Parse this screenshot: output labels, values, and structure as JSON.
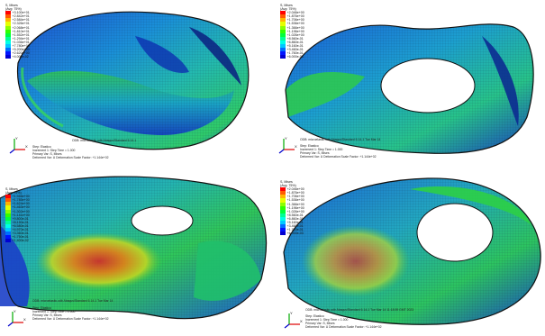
{
  "panels": [
    {
      "legend": {
        "title": "S, Mises",
        "avg": "(Avg: 75%)",
        "values": [
          "+3.100e+01",
          "+2.842e+01",
          "+2.584e+01",
          "+2.326e+01",
          "+2.068e+01",
          "+1.810e+01",
          "+1.552e+01",
          "+1.294e+01",
          "+1.036e+01",
          "+7.780e+00",
          "+5.200e+00",
          "+2.620e+00",
          "+4.000e-02"
        ]
      },
      "odb": "ODB: microelastic.odb    Abaqus/Standard 6.14-1",
      "info": [
        "Step: Elastico",
        "Increment     1: Step Time =    1.000",
        "Primary Var: S, Mises",
        "Deformed Var: U   Deformation Scale Factor: +1.144e+02"
      ]
    },
    {
      "legend": {
        "title": "S, Mises",
        "avg": "(Avg: 75%)",
        "values": [
          "+2.046e+00",
          "+1.876e+00",
          "+1.706e+00",
          "+1.536e+00",
          "+1.366e+00",
          "+1.196e+00",
          "+1.026e+00",
          "+8.560e-01",
          "+6.860e-01",
          "+5.160e-01",
          "+3.460e-01",
          "+1.760e-01",
          "+6.000e-03"
        ]
      },
      "odb": "ODB: microelastic.odb    Abaqus/Standard 6.14-1    Tue Mar 14",
      "info": [
        "Step: Elastico",
        "Increment     1: Step Time =    1.000",
        "Primary Var: S, Mises",
        "Deformed Var: U   Deformation Scale Factor: +1.144e+02"
      ]
    },
    {
      "legend": {
        "title": "S, Mises",
        "avg": "(Avg: 75%)",
        "values": [
          "+1.946e+00",
          "+1.785e+00",
          "+1.624e+00",
          "+1.463e+00",
          "+1.302e+00",
          "+1.141e+00",
          "+9.800e-01",
          "+8.190e-01",
          "+6.580e-01",
          "+4.970e-01",
          "+3.360e-01",
          "+1.750e-01",
          "+1.400e-02"
        ]
      },
      "odb": "ODB: microelastic.odb    Abaqus/Standard 6.14-1    Tue Mar 14",
      "info": [
        "Step: Elastico",
        "Increment     1: Step Time =    1.000",
        "Primary Var: S, Mises",
        "Deformed Var: U   Deformation Scale Factor: +1.144e+02"
      ]
    },
    {
      "legend": {
        "title": "S, Mises",
        "avg": "(Avg: 75%)",
        "values": [
          "+2.046e+00",
          "+1.876e+00",
          "+1.706e+00",
          "+1.536e+00",
          "+1.366e+00",
          "+1.196e+00",
          "+1.026e+00",
          "+8.560e-01",
          "+6.860e-01",
          "+5.160e-01",
          "+3.460e-01",
          "+1.760e-01",
          "+6.000e-03"
        ]
      },
      "odb": "ODB: microelastic.odb    Abaqus/Standard 6.14-1    Tue Mar 14 11:18:59 GMT 2023",
      "info": [
        "Step: Elastico",
        "Increment     1: Step Time =    1.000",
        "Primary Var: S, Mises",
        "Deformed Var: U   Deformation Scale Factor: +1.144e+02"
      ]
    }
  ],
  "legend_colors": [
    "#ff0000",
    "#ff5a00",
    "#ffb400",
    "#e6ff00",
    "#8cff00",
    "#32ff00",
    "#00ff3c",
    "#00ff96",
    "#00ffe6",
    "#00c8ff",
    "#006eff",
    "#0014ff",
    "#0000d2"
  ],
  "triad": {
    "x": "X",
    "y": "Y",
    "z": "Z"
  }
}
